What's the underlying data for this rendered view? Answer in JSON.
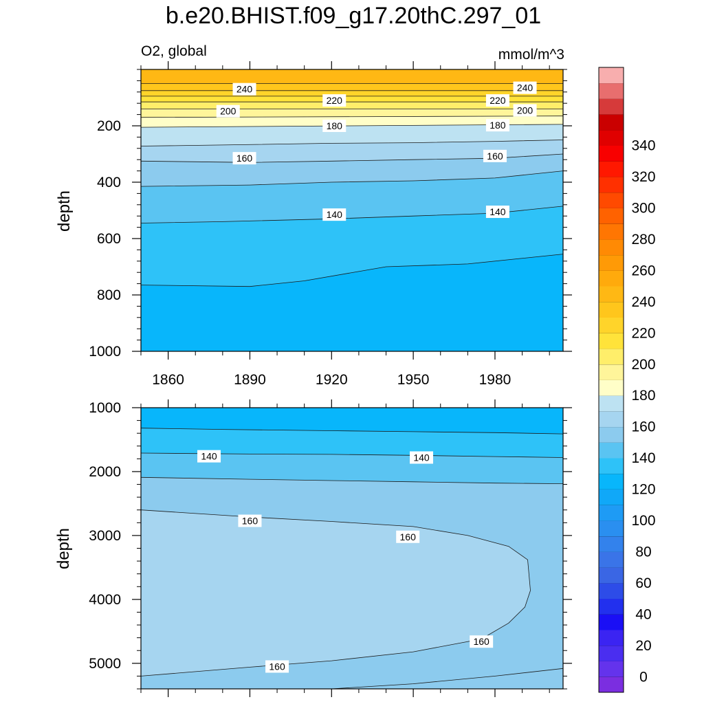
{
  "chart_data": {
    "type": "contour",
    "title": "b.e20.BHIST.f09_g17.20thC.297_01",
    "left_subtitle": "O2, global",
    "right_subtitle": "mmol/m^3",
    "ylabel": "depth",
    "x_ticks": [
      1860,
      1890,
      1920,
      1950,
      1980
    ],
    "xlim": [
      1850,
      2005
    ],
    "panels": [
      {
        "name": "upper",
        "ylim": [
          0,
          1000
        ],
        "y_ticks": [
          200,
          400,
          600,
          800,
          1000
        ],
        "contours": [
          {
            "level": 240,
            "x": [
              1850,
              2005
            ],
            "depth": [
              50,
              50
            ]
          },
          {
            "level": 230,
            "x": [
              1850,
              2005
            ],
            "depth": [
              75,
              75
            ]
          },
          {
            "level": 220,
            "x": [
              1850,
              2005
            ],
            "depth": [
              95,
              95
            ]
          },
          {
            "level": 210,
            "x": [
              1850,
              2005
            ],
            "depth": [
              115,
              115
            ]
          },
          {
            "level": 200,
            "x": [
              1850,
              2005
            ],
            "depth": [
              140,
              140
            ]
          },
          {
            "level": 190,
            "x": [
              1850,
              2005
            ],
            "depth": [
              170,
              165
            ]
          },
          {
            "level": 180,
            "x": [
              1850,
              2005
            ],
            "depth": [
              205,
              195
            ]
          },
          {
            "level": 170,
            "x": [
              1850,
              1880,
              1920,
              1950,
              1980,
              2005
            ],
            "depth": [
              272,
              268,
              262,
              260,
              255,
              250
            ]
          },
          {
            "level": 160,
            "x": [
              1850,
              1890,
              1920,
              1950,
              1980,
              2005
            ],
            "depth": [
              325,
              330,
              325,
              320,
              315,
              300
            ]
          },
          {
            "level": 150,
            "x": [
              1850,
              1890,
              1920,
              1950,
              1980,
              2005
            ],
            "depth": [
              415,
              410,
              400,
              395,
              385,
              360
            ]
          },
          {
            "level": 140,
            "x": [
              1850,
              1880,
              1920,
              1950,
              1980,
              2005
            ],
            "depth": [
              545,
              540,
              530,
              520,
              510,
              485
            ]
          },
          {
            "level": 130,
            "x": [
              1850,
              1890,
              1910,
              1940,
              1970,
              2005
            ],
            "depth": [
              765,
              770,
              750,
              700,
              690,
              655
            ]
          }
        ],
        "fills": [
          {
            "above": "contour:240",
            "value": 245
          },
          {
            "between": [
              240,
              230
            ],
            "value": 235
          },
          {
            "between": [
              230,
              220
            ],
            "value": 225
          },
          {
            "between": [
              220,
              210
            ],
            "value": 215
          },
          {
            "between": [
              210,
              200
            ],
            "value": 205
          },
          {
            "between": [
              200,
              190
            ],
            "value": 195
          },
          {
            "between": [
              190,
              180
            ],
            "value": 185
          },
          {
            "between": [
              180,
              170
            ],
            "value": 175
          },
          {
            "between": [
              170,
              160
            ],
            "value": 165
          },
          {
            "between": [
              160,
              150
            ],
            "value": 155
          },
          {
            "between": [
              150,
              140
            ],
            "value": 145
          },
          {
            "between": [
              140,
              130
            ],
            "value": 135
          },
          {
            "below": "contour:130",
            "value": 125
          }
        ],
        "labels": [
          {
            "text": "240",
            "x": 1888,
            "depth": 70
          },
          {
            "text": "240",
            "x": 1991,
            "depth": 65
          },
          {
            "text": "220",
            "x": 1921,
            "depth": 110
          },
          {
            "text": "220",
            "x": 1981,
            "depth": 110
          },
          {
            "text": "200",
            "x": 1882,
            "depth": 148
          },
          {
            "text": "200",
            "x": 1991,
            "depth": 145
          },
          {
            "text": "180",
            "x": 1921,
            "depth": 200
          },
          {
            "text": "180",
            "x": 1981,
            "depth": 198
          },
          {
            "text": "160",
            "x": 1888,
            "depth": 315
          },
          {
            "text": "160",
            "x": 1980,
            "depth": 307
          },
          {
            "text": "140",
            "x": 1921,
            "depth": 515
          },
          {
            "text": "140",
            "x": 1981,
            "depth": 505
          }
        ]
      },
      {
        "name": "lower",
        "ylim": [
          1000,
          5400
        ],
        "y_ticks": [
          1000,
          2000,
          3000,
          4000,
          5000
        ],
        "contours": [
          {
            "level": 130,
            "x": [
              1850,
              1880,
              1920,
              1950,
              1980,
              2005
            ],
            "depth": [
              1320,
              1340,
              1360,
              1375,
              1390,
              1410
            ]
          },
          {
            "level": 140,
            "x": [
              1850,
              1890,
              1920,
              1950,
              1980,
              2005
            ],
            "depth": [
              1710,
              1725,
              1730,
              1745,
              1765,
              1780
            ]
          },
          {
            "level": 150,
            "x": [
              1850,
              1890,
              1920,
              1950,
              1980,
              2005
            ],
            "depth": [
              2090,
              2120,
              2140,
              2160,
              2180,
              2190
            ]
          },
          {
            "level": 160,
            "x": [
              1850,
              1890,
              1920,
              1950,
              1970,
              1985,
              1992,
              1993,
              1991,
              1985,
              1975,
              1950,
              1920,
              1890,
              1850
            ],
            "depth": [
              2600,
              2710,
              2780,
              2860,
              3000,
              3170,
              3380,
              3860,
              4120,
              4370,
              4620,
              4820,
              4960,
              5060,
              5200
            ]
          },
          {
            "level": 150,
            "x": [
              1920,
              1950,
              1980,
              2005
            ],
            "depth": [
              5400,
              5320,
              5200,
              5080
            ]
          }
        ],
        "fills": [
          {
            "above": "contour:130",
            "value": 125
          },
          {
            "between": [
              130,
              140
            ],
            "value": 135
          },
          {
            "between": [
              140,
              150
            ],
            "value": 145
          },
          {
            "between": [
              150,
              160
            ],
            "value": 155
          },
          {
            "inside": "contour:160",
            "value": 165
          }
        ],
        "labels": [
          {
            "text": "140",
            "x": 1875,
            "depth": 1760
          },
          {
            "text": "140",
            "x": 1953,
            "depth": 1780
          },
          {
            "text": "160",
            "x": 1890,
            "depth": 2770
          },
          {
            "text": "160",
            "x": 1948,
            "depth": 3020
          },
          {
            "text": "160",
            "x": 1975,
            "depth": 4660
          },
          {
            "text": "160",
            "x": 1900,
            "depth": 5050
          }
        ]
      }
    ],
    "colorbar": {
      "labels": [
        "0",
        "20",
        "40",
        "60",
        "80",
        "100",
        "120",
        "140",
        "160",
        "180",
        "200",
        "220",
        "240",
        "260",
        "280",
        "300",
        "320",
        "340"
      ],
      "levels_min": -10,
      "levels_max": 360,
      "step": 10,
      "colors": [
        "#7b2ee0",
        "#6433ec",
        "#4a2ef0",
        "#3b24f2",
        "#1a0ff5",
        "#2230ee",
        "#2d4ce8",
        "#3a66e4",
        "#3a74e8",
        "#3382ec",
        "#2a8ff0",
        "#1e9bf5",
        "#10a8f8",
        "#08b6fb",
        "#2ec2f8",
        "#5ac4f2",
        "#8ccbee",
        "#a6d5f0",
        "#bde2f2",
        "#fffec8",
        "#fff59a",
        "#ffee6a",
        "#ffe33a",
        "#ffd42a",
        "#ffc61c",
        "#ffb814",
        "#ffaa0c",
        "#ff9a06",
        "#ff8a04",
        "#ff7602",
        "#ff6200",
        "#ff4a00",
        "#ff3000",
        "#ff1800",
        "#f80000",
        "#e00000",
        "#ca0000",
        "#d63a3a",
        "#e86e6e",
        "#f8aeae"
      ]
    }
  }
}
